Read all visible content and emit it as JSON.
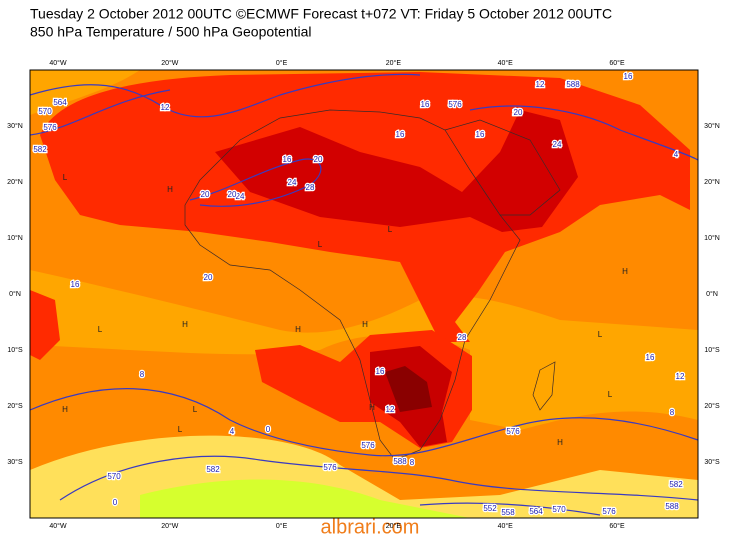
{
  "header": {
    "line1": "Tuesday 2 October 2012 00UTC ©ECMWF Forecast t+072 VT: Friday 5 October 2012 00UTC",
    "line2": "850 hPa Temperature / 500 hPa Geopotential"
  },
  "axes": {
    "longitudes": [
      "40°W",
      "20°W",
      "0°E",
      "20°E",
      "40°E",
      "60°E"
    ],
    "latitudes": [
      "30°N",
      "20°N",
      "10°N",
      "0°N",
      "10°S",
      "20°S",
      "30°S"
    ]
  },
  "contour_labels": [
    "576",
    "582",
    "564",
    "570",
    "12",
    "16",
    "20",
    "24",
    "28",
    "16",
    "20",
    "24",
    "576",
    "16",
    "20",
    "16",
    "12",
    "16",
    "16",
    "20",
    "24",
    "28",
    "16",
    "12",
    "8",
    "4",
    "0",
    "582",
    "576",
    "570",
    "576",
    "588",
    "8",
    "4",
    "0",
    "552",
    "558",
    "564",
    "570",
    "576",
    "582",
    "588",
    "16",
    "12",
    "8",
    "576",
    "588",
    "12",
    "16",
    "20"
  ],
  "pressure_marks": [
    "H",
    "L",
    "H",
    "L",
    "H",
    "L",
    "H",
    "L",
    "H",
    "L",
    "H",
    "L",
    "H",
    "L",
    "H",
    "L"
  ],
  "watermark": "albrari.com"
}
